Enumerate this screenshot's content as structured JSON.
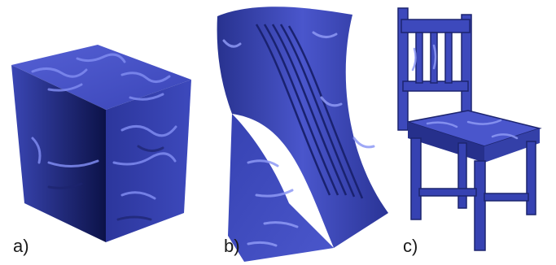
{
  "figure": {
    "panels": [
      {
        "label": "a)",
        "shape": "cube"
      },
      {
        "label": "b)",
        "shape": "curved-wedge"
      },
      {
        "label": "c)",
        "shape": "chair"
      }
    ],
    "colors": {
      "surface_light": "#4a55c8",
      "surface_mid": "#333fb0",
      "surface_dark": "#10185a",
      "highlight": "#aab4ff"
    }
  }
}
